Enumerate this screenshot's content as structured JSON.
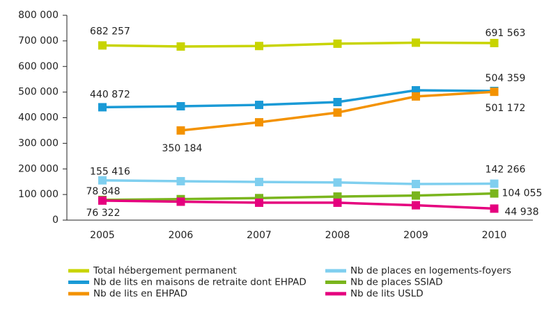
{
  "chart_data": {
    "type": "line",
    "categories": [
      "2005",
      "2006",
      "2007",
      "2008",
      "2009",
      "2010"
    ],
    "ylim": [
      0,
      800000
    ],
    "yticks": [
      {
        "value": 0,
        "label": "0"
      },
      {
        "value": 100000,
        "label": "100 000"
      },
      {
        "value": 200000,
        "label": "200 000"
      },
      {
        "value": 300000,
        "label": "300 000"
      },
      {
        "value": 400000,
        "label": "400 000"
      },
      {
        "value": 500000,
        "label": "500 000"
      },
      {
        "value": 600000,
        "label": "600 000"
      },
      {
        "value": 700000,
        "label": "700 000"
      },
      {
        "value": 800000,
        "label": "800 000"
      }
    ],
    "series": [
      {
        "name": "Total hébergement permanent",
        "color": "#c8d400",
        "values": [
          682257,
          678000,
          680000,
          689000,
          693000,
          691563
        ],
        "value_labels": [
          "682 257",
          null,
          null,
          null,
          null,
          "691 563"
        ]
      },
      {
        "name": "Nb de lits en maisons de retraite dont EHPAD",
        "color": "#1a9ad6",
        "values": [
          440872,
          444700,
          450000,
          461000,
          507000,
          504359
        ],
        "value_labels": [
          "440 872",
          null,
          null,
          null,
          null,
          "504 359"
        ]
      },
      {
        "name": "Nb de lits en EHPAD",
        "color": "#f39200",
        "values": [
          null,
          350184,
          382000,
          420000,
          483000,
          501172
        ],
        "value_labels": [
          null,
          "350 184",
          null,
          null,
          null,
          "501 172"
        ]
      },
      {
        "name": "Nb de places en logements-foyers",
        "color": "#7fcfef",
        "values": [
          155416,
          152000,
          149000,
          147000,
          141000,
          142266
        ],
        "value_labels": [
          "155 416",
          null,
          null,
          null,
          null,
          "142 266"
        ]
      },
      {
        "name": "Nb de places SSIAD",
        "color": "#7ab51d",
        "values": [
          78848,
          82000,
          86000,
          92000,
          96000,
          104055
        ],
        "value_labels": [
          "78 848",
          null,
          null,
          null,
          null,
          "104 055"
        ]
      },
      {
        "name": "Nb de lits USLD",
        "color": "#e5007e",
        "values": [
          76322,
          72000,
          68000,
          68000,
          58000,
          44938
        ],
        "value_labels": [
          "76 322",
          null,
          null,
          null,
          null,
          "44 938"
        ]
      }
    ]
  }
}
